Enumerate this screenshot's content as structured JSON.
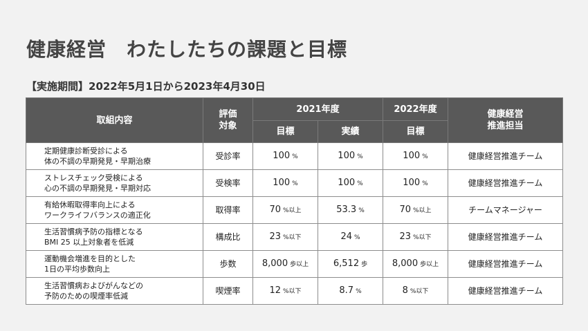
{
  "title": "健康経営　わたしたちの課題と目標",
  "period": "【実施期間】2022年5月1日から2023年4月30日",
  "table": {
    "headers": {
      "item": "取組内容",
      "eval_line1": "評価",
      "eval_line2": "対象",
      "y2021": "2021年度",
      "y2022": "2022年度",
      "owner_line1": "健康経営",
      "owner_line2": "推進担当",
      "target": "目標",
      "actual": "実績",
      "target2022": "目標"
    },
    "rows": [
      {
        "item1": "定期健康診断受診による",
        "item2": "体の不調の早期発見・早期治療",
        "eval": "受診率",
        "t21v": "100",
        "t21u": "%",
        "a21v": "100",
        "a21u": "%",
        "t22v": "100",
        "t22u": "%",
        "owner": "健康経営推進チーム"
      },
      {
        "item1": "ストレスチェック受検による",
        "item2": "心の不調の早期発見・早期対応",
        "eval": "受検率",
        "t21v": "100",
        "t21u": "%",
        "a21v": "100",
        "a21u": "%",
        "t22v": "100",
        "t22u": "%",
        "owner": "健康経営推進チーム"
      },
      {
        "item1": "有給休暇取得率向上による",
        "item2": "ワークライフバランスの適正化",
        "eval": "取得率",
        "t21v": "70",
        "t21u": "%以上",
        "a21v": "53.3",
        "a21u": "%",
        "t22v": "70",
        "t22u": "%以上",
        "owner": "チームマネージャー"
      },
      {
        "item1": "生活習慣病予防の指標となる",
        "item2": "BMI 25 以上対象者を低減",
        "eval": "構成比",
        "t21v": "23",
        "t21u": "%以下",
        "a21v": "24",
        "a21u": "%",
        "t22v": "23",
        "t22u": "%以下",
        "owner": "健康経営推進チーム"
      },
      {
        "item1": "運動機会増進を目的とした",
        "item2": "1日の平均歩数向上",
        "eval": "歩数",
        "t21v": "8,000",
        "t21u": "歩以上",
        "a21v": "6,512",
        "a21u": "歩",
        "t22v": "8,000",
        "t22u": "歩以上",
        "owner": "健康経営推進チーム"
      },
      {
        "item1": "生活習慣病およびがんなどの",
        "item2": "予防のための喫煙率低減",
        "eval": "喫煙率",
        "t21v": "12",
        "t21u": "%以下",
        "a21v": "8.7",
        "a21u": "%",
        "t22v": "8",
        "t22u": "%以下",
        "owner": "健康経営推進チーム"
      }
    ]
  }
}
